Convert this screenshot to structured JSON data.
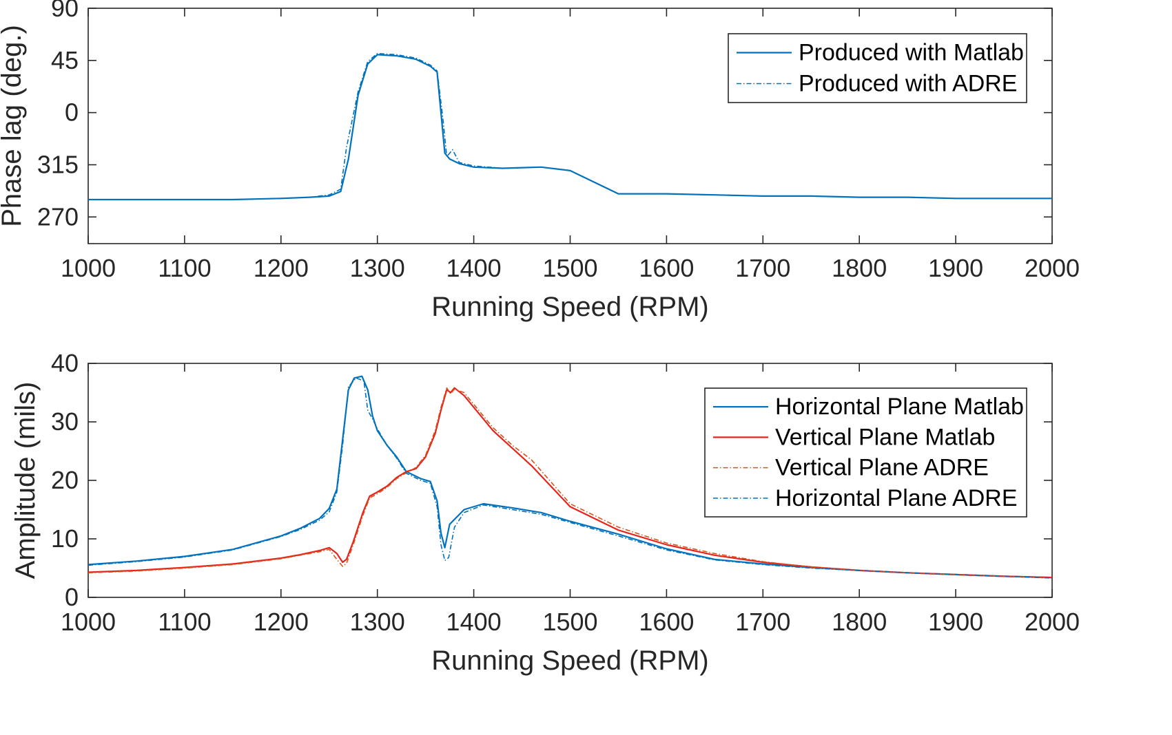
{
  "chart_data": [
    {
      "type": "line",
      "xlabel": "Running Speed (RPM)",
      "ylabel": "Phase lag (deg.)",
      "xlim": [
        1000,
        2000
      ],
      "xticks": [
        "1000",
        "1100",
        "1200",
        "1300",
        "1400",
        "1500",
        "1600",
        "1700",
        "1800",
        "1900",
        "2000"
      ],
      "yticks": [
        "270",
        "315",
        "0",
        "45",
        "90"
      ],
      "ylim_unwrapped": [
        247,
        450
      ],
      "y_tick_values_unwrapped": [
        270,
        315,
        360,
        405,
        450
      ],
      "grid": false,
      "legend_position": "top-right",
      "series": [
        {
          "name": "Produced with Matlab",
          "color": "#0072BD",
          "style": "solid",
          "x": [
            1000,
            1050,
            1100,
            1150,
            1200,
            1230,
            1250,
            1262,
            1270,
            1280,
            1290,
            1300,
            1320,
            1340,
            1355,
            1362,
            1366,
            1370,
            1375,
            1385,
            1400,
            1430,
            1470,
            1500,
            1550,
            1600,
            1650,
            1700,
            1750,
            1800,
            1850,
            1900,
            1950,
            2000
          ],
          "y": [
            285,
            285,
            285,
            285,
            286,
            287,
            288,
            292,
            320,
            375,
            402,
            410,
            409,
            406,
            400,
            395,
            360,
            325,
            320,
            316,
            313,
            312,
            313,
            310,
            290,
            290,
            289,
            288,
            288,
            287,
            287,
            286,
            286,
            286
          ]
        },
        {
          "name": "Produced with ADRE",
          "color": "#0072BD",
          "style": "dashdot",
          "x": [
            1000,
            1050,
            1100,
            1150,
            1200,
            1230,
            1250,
            1262,
            1268,
            1280,
            1290,
            1300,
            1320,
            1340,
            1355,
            1362,
            1368,
            1372,
            1378,
            1385,
            1400,
            1430,
            1470,
            1500,
            1550,
            1600,
            1650,
            1700,
            1750,
            1800,
            1850,
            1900,
            1950,
            2000
          ],
          "y": [
            285,
            285,
            285,
            285,
            286,
            287,
            289,
            294,
            330,
            378,
            404,
            411,
            410,
            407,
            401,
            396,
            355,
            322,
            328,
            317,
            314,
            312,
            313,
            310,
            290,
            290,
            289,
            288,
            288,
            287,
            287,
            286,
            286,
            286
          ]
        }
      ]
    },
    {
      "type": "line",
      "xlabel": "Running Speed (RPM)",
      "ylabel": "Amplitude (mils)",
      "xlim": [
        1000,
        2000
      ],
      "ylim": [
        0,
        40
      ],
      "xticks": [
        "1000",
        "1100",
        "1200",
        "1300",
        "1400",
        "1500",
        "1600",
        "1700",
        "1800",
        "1900",
        "2000"
      ],
      "yticks": [
        "0",
        "10",
        "20",
        "30",
        "40"
      ],
      "grid": false,
      "legend_position": "top-right",
      "series": [
        {
          "name": "Horizontal Plane Matlab",
          "color": "#0072BD",
          "style": "solid",
          "x": [
            1000,
            1050,
            1100,
            1150,
            1200,
            1220,
            1240,
            1250,
            1258,
            1264,
            1270,
            1276,
            1284,
            1290,
            1295,
            1300,
            1310,
            1320,
            1330,
            1345,
            1355,
            1362,
            1366,
            1370,
            1375,
            1390,
            1410,
            1440,
            1470,
            1500,
            1550,
            1600,
            1650,
            1700,
            1750,
            1800,
            1850,
            1900,
            1950,
            2000
          ],
          "y": [
            5.6,
            6.2,
            7.0,
            8.2,
            10.5,
            11.8,
            13.5,
            15.2,
            18.5,
            27.0,
            35.5,
            37.5,
            37.8,
            35.5,
            31.0,
            28.5,
            26.0,
            24.0,
            21.5,
            20.3,
            19.8,
            16.5,
            11.0,
            8.5,
            12.5,
            15.0,
            16.0,
            15.3,
            14.5,
            13.0,
            10.8,
            8.3,
            6.5,
            5.7,
            5.1,
            4.6,
            4.2,
            3.9,
            3.6,
            3.4
          ]
        },
        {
          "name": "Vertical Plane Matlab",
          "color": "#E6231B",
          "style": "solid",
          "x": [
            1000,
            1050,
            1100,
            1150,
            1200,
            1220,
            1240,
            1250,
            1258,
            1264,
            1268,
            1275,
            1285,
            1292,
            1300,
            1310,
            1320,
            1330,
            1340,
            1350,
            1360,
            1366,
            1372,
            1376,
            1380,
            1390,
            1400,
            1420,
            1440,
            1460,
            1500,
            1550,
            1600,
            1650,
            1700,
            1750,
            1800,
            1850,
            1900,
            1950,
            2000
          ],
          "y": [
            4.3,
            4.6,
            5.1,
            5.7,
            6.7,
            7.3,
            8.0,
            8.5,
            7.5,
            6.0,
            6.5,
            9.5,
            14.5,
            17.3,
            18.0,
            19.0,
            20.5,
            21.5,
            22.0,
            24.0,
            28.0,
            32.0,
            35.5,
            35.0,
            35.8,
            34.5,
            32.5,
            28.5,
            25.5,
            22.5,
            15.5,
            11.5,
            9.0,
            7.2,
            6.0,
            5.2,
            4.6,
            4.2,
            3.9,
            3.6,
            3.4
          ]
        },
        {
          "name": "Vertical Plane ADRE",
          "color": "#D95319",
          "style": "dashdot",
          "x": [
            1000,
            1050,
            1100,
            1150,
            1200,
            1220,
            1240,
            1250,
            1258,
            1264,
            1268,
            1275,
            1285,
            1292,
            1300,
            1310,
            1320,
            1330,
            1340,
            1350,
            1360,
            1366,
            1372,
            1376,
            1380,
            1390,
            1400,
            1420,
            1440,
            1460,
            1500,
            1550,
            1600,
            1650,
            1700,
            1750,
            1800,
            1850,
            1900,
            1950,
            2000
          ],
          "y": [
            4.2,
            4.5,
            5.0,
            5.6,
            6.6,
            7.2,
            7.8,
            8.2,
            6.5,
            5.3,
            5.8,
            9.0,
            14.0,
            17.0,
            17.7,
            18.8,
            20.3,
            21.3,
            22.2,
            24.3,
            28.5,
            32.5,
            35.8,
            34.8,
            35.6,
            35.0,
            33.0,
            29.0,
            26.0,
            23.5,
            16.0,
            12.0,
            9.3,
            7.5,
            6.1,
            5.2,
            4.6,
            4.2,
            3.9,
            3.6,
            3.3
          ]
        },
        {
          "name": "Horizontal Plane ADRE",
          "color": "#0072BD",
          "style": "dashdot",
          "x": [
            1000,
            1050,
            1100,
            1150,
            1200,
            1220,
            1240,
            1250,
            1258,
            1264,
            1270,
            1278,
            1286,
            1290,
            1295,
            1300,
            1310,
            1320,
            1330,
            1345,
            1355,
            1362,
            1366,
            1370,
            1374,
            1380,
            1390,
            1410,
            1440,
            1470,
            1500,
            1550,
            1600,
            1650,
            1700,
            1750,
            1800,
            1850,
            1900,
            1950,
            2000
          ],
          "y": [
            5.5,
            6.1,
            6.9,
            8.1,
            10.4,
            11.6,
            13.2,
            14.6,
            18.0,
            26.0,
            36.0,
            37.5,
            37.0,
            32.0,
            30.5,
            28.8,
            26.0,
            23.8,
            21.2,
            20.0,
            19.5,
            15.5,
            9.0,
            6.3,
            6.8,
            12.0,
            14.5,
            15.8,
            15.0,
            14.2,
            12.8,
            10.5,
            8.1,
            6.4,
            5.6,
            5.0,
            4.6,
            4.2,
            3.9,
            3.6,
            3.3
          ]
        }
      ]
    }
  ]
}
